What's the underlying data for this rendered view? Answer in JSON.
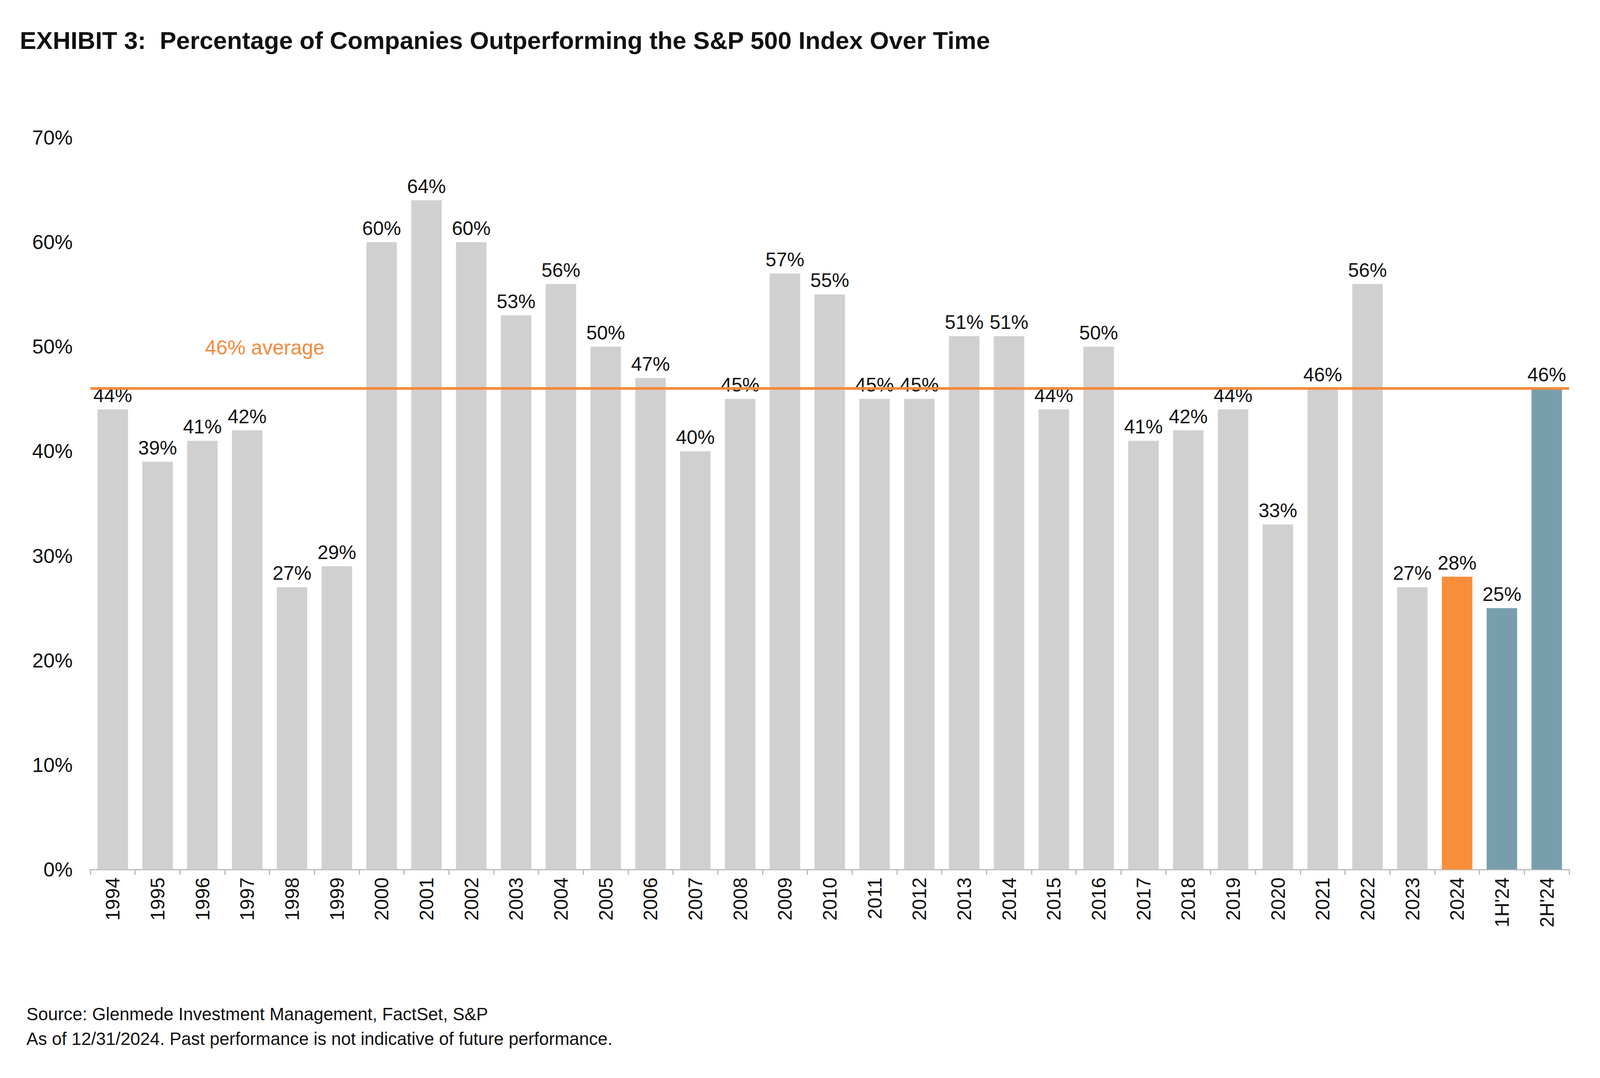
{
  "chart_data": {
    "type": "bar",
    "title": "EXHIBIT 3:  Percentage of Companies Outperforming the S&P 500 Index Over Time",
    "categories": [
      "1994",
      "1995",
      "1996",
      "1997",
      "1998",
      "1999",
      "2000",
      "2001",
      "2002",
      "2003",
      "2004",
      "2005",
      "2006",
      "2007",
      "2008",
      "2009",
      "2010",
      "2011",
      "2012",
      "2013",
      "2014",
      "2015",
      "2016",
      "2017",
      "2018",
      "2019",
      "2020",
      "2021",
      "2022",
      "2023",
      "2024",
      "1H'24",
      "2H'24"
    ],
    "values": [
      44,
      39,
      41,
      42,
      27,
      29,
      60,
      64,
      60,
      53,
      56,
      50,
      47,
      40,
      45,
      57,
      55,
      45,
      45,
      51,
      51,
      44,
      50,
      41,
      42,
      44,
      33,
      46,
      56,
      27,
      28,
      25,
      46
    ],
    "value_labels": [
      "44%",
      "39%",
      "41%",
      "42%",
      "27%",
      "29%",
      "60%",
      "64%",
      "60%",
      "53%",
      "56%",
      "50%",
      "47%",
      "40%",
      "45%",
      "57%",
      "55%",
      "45%",
      "45%",
      "51%",
      "51%",
      "44%",
      "50%",
      "41%",
      "42%",
      "44%",
      "33%",
      "46%",
      "56%",
      "27%",
      "28%",
      "25%",
      "46%"
    ],
    "colors": [
      "#d0d0d0",
      "#d0d0d0",
      "#d0d0d0",
      "#d0d0d0",
      "#d0d0d0",
      "#d0d0d0",
      "#d0d0d0",
      "#d0d0d0",
      "#d0d0d0",
      "#d0d0d0",
      "#d0d0d0",
      "#d0d0d0",
      "#d0d0d0",
      "#d0d0d0",
      "#d0d0d0",
      "#d0d0d0",
      "#d0d0d0",
      "#d0d0d0",
      "#d0d0d0",
      "#d0d0d0",
      "#d0d0d0",
      "#d0d0d0",
      "#d0d0d0",
      "#d0d0d0",
      "#d0d0d0",
      "#d0d0d0",
      "#d0d0d0",
      "#d0d0d0",
      "#d0d0d0",
      "#d0d0d0",
      "#f98e3a",
      "#789eae",
      "#789eae"
    ],
    "data_labels": true,
    "grid": false,
    "ylim": [
      0,
      70
    ],
    "yticks": [
      {
        "value": 0,
        "label": "0%"
      },
      {
        "value": 10,
        "label": "10%"
      },
      {
        "value": 20,
        "label": "20%"
      },
      {
        "value": 30,
        "label": "30%"
      },
      {
        "value": 40,
        "label": "40%"
      },
      {
        "value": 50,
        "label": "50%"
      },
      {
        "value": 60,
        "label": "60%"
      },
      {
        "value": 70,
        "label": "70%"
      }
    ],
    "average": {
      "value": 46,
      "label": "46% average",
      "color": "#f58a3c"
    },
    "source": "Source: Glenmede Investment Management, FactSet, S&P",
    "note": "As of 12/31/2024. Past performance is not indicative of future performance."
  }
}
